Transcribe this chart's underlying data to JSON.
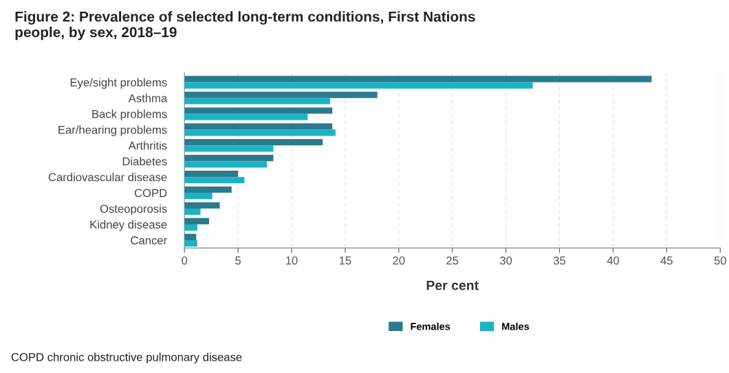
{
  "chart_data": {
    "type": "bar",
    "orientation": "horizontal",
    "title": "Figure 2: Prevalence of selected long-term conditions, First Nations\npeople, by sex, 2018–19",
    "categories": [
      "Eye/sight problems",
      "Asthma",
      "Back problems",
      "Ear/hearing problems",
      "Arthritis",
      "Diabetes",
      "Cardiovascular disease",
      "COPD",
      "Osteoporosis",
      "Kidney disease",
      "Cancer"
    ],
    "series": [
      {
        "name": "Females",
        "color": "#2b7a8e",
        "values": [
          43.6,
          18.0,
          13.8,
          13.8,
          12.9,
          8.3,
          5.0,
          4.4,
          3.3,
          2.3,
          1.1
        ]
      },
      {
        "name": "Males",
        "color": "#1bb3c3",
        "values": [
          32.5,
          13.6,
          11.5,
          14.1,
          8.3,
          7.7,
          5.6,
          2.6,
          1.5,
          1.2,
          1.2
        ]
      }
    ],
    "xlabel": "Per cent",
    "xlim": [
      0,
      50
    ],
    "xticks": [
      0,
      5,
      10,
      15,
      20,
      25,
      30,
      35,
      40,
      45,
      50
    ],
    "grid": "x",
    "legend": "bottom",
    "annotations": [
      "COPD chronic obstructive pulmonary disease"
    ]
  }
}
